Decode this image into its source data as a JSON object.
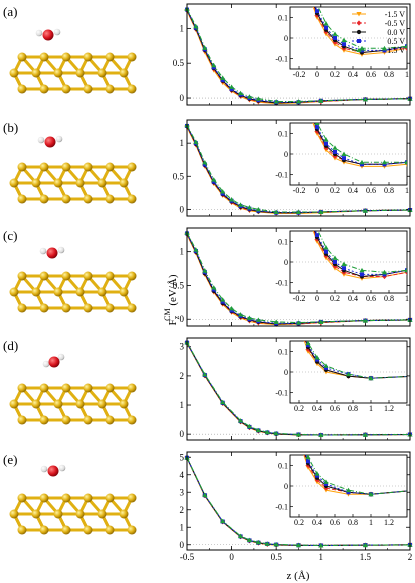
{
  "ylabel_main": "F",
  "ylabel_sup": "CM",
  "ylabel_sub": "z",
  "ylabel_unit": " (eV/Å)",
  "xlabel": "z (Å)",
  "colors": {
    "-1.5 V": "#ffa20a",
    "-0.5 V": "#e8262a",
    "0.0 V": "#111111",
    "0.5 V": "#1c27d8",
    "1.5 V": "#1f9e3a",
    "gold": "#e0b012",
    "oxygen": "#d8131d",
    "hydrogen": "#e8e8e8"
  },
  "chart_data": [
    {
      "type": "line",
      "panel": "(a)",
      "xlim": [
        -0.5,
        2
      ],
      "ylim": [
        -0.1,
        1.35
      ],
      "xticks": [
        "-0.5",
        "0",
        "0.5",
        "1",
        "1.5",
        "2"
      ],
      "yticks": [
        "0",
        "0.5",
        "1"
      ],
      "series": [
        {
          "name": "-1.5 V",
          "x": [
            -0.5,
            -0.4,
            -0.3,
            -0.2,
            -0.1,
            0,
            0.1,
            0.2,
            0.3,
            0.5,
            0.75,
            1,
            1.5,
            2
          ],
          "y": [
            1.25,
            0.98,
            0.66,
            0.4,
            0.22,
            0.1,
            0.02,
            -0.03,
            -0.06,
            -0.08,
            -0.07,
            -0.05,
            -0.02,
            -0.01
          ]
        },
        {
          "name": "-0.5 V",
          "x": [
            -0.5,
            -0.4,
            -0.3,
            -0.2,
            -0.1,
            0,
            0.1,
            0.2,
            0.3,
            0.5,
            0.75,
            1,
            1.5,
            2
          ],
          "y": [
            1.26,
            0.99,
            0.68,
            0.42,
            0.24,
            0.11,
            0.03,
            -0.02,
            -0.05,
            -0.07,
            -0.06,
            -0.05,
            -0.02,
            -0.01
          ]
        },
        {
          "name": "0.0 V",
          "x": [
            -0.5,
            -0.4,
            -0.3,
            -0.2,
            -0.1,
            0,
            0.1,
            0.2,
            0.3,
            0.5,
            0.75,
            1,
            1.5,
            2
          ],
          "y": [
            1.27,
            1.0,
            0.69,
            0.43,
            0.25,
            0.12,
            0.04,
            -0.01,
            -0.04,
            -0.07,
            -0.06,
            -0.04,
            -0.02,
            -0.01
          ]
        },
        {
          "name": "0.5 V",
          "x": [
            -0.5,
            -0.4,
            -0.3,
            -0.2,
            -0.1,
            0,
            0.1,
            0.2,
            0.3,
            0.5,
            0.75,
            1,
            1.5,
            2
          ],
          "y": [
            1.27,
            1.01,
            0.7,
            0.44,
            0.26,
            0.13,
            0.05,
            0.0,
            -0.03,
            -0.06,
            -0.06,
            -0.04,
            -0.02,
            -0.01
          ]
        },
        {
          "name": "1.5 V",
          "x": [
            -0.5,
            -0.4,
            -0.3,
            -0.2,
            -0.1,
            0,
            0.1,
            0.2,
            0.3,
            0.5,
            0.75,
            1,
            1.5,
            2
          ],
          "y": [
            1.28,
            1.03,
            0.72,
            0.47,
            0.29,
            0.16,
            0.07,
            0.02,
            -0.01,
            -0.05,
            -0.05,
            -0.04,
            -0.02,
            -0.01
          ]
        }
      ],
      "inset": {
        "xlim": [
          -0.3,
          1
        ],
        "ylim": [
          -0.15,
          0.15
        ],
        "xticks": [
          "-0.2",
          "0",
          "0.2",
          "0.4",
          "0.6",
          "0.8",
          "1"
        ],
        "yticks": [
          "-0.1",
          "0",
          "0.1"
        ]
      }
    },
    {
      "type": "line",
      "panel": "(b)",
      "xlim": [
        -0.5,
        2
      ],
      "ylim": [
        -0.1,
        1.35
      ],
      "xticks": [
        "-0.5",
        "0",
        "0.5",
        "1",
        "1.5",
        "2"
      ],
      "yticks": [
        "0",
        "0.5",
        "1"
      ],
      "series": [
        {
          "name": "-1.5 V",
          "x": [
            -0.5,
            -0.4,
            -0.3,
            -0.2,
            -0.1,
            0,
            0.1,
            0.2,
            0.3,
            0.5,
            0.75,
            1,
            1.5,
            2
          ],
          "y": [
            1.24,
            0.97,
            0.65,
            0.39,
            0.21,
            0.1,
            0.02,
            -0.02,
            -0.04,
            -0.06,
            -0.06,
            -0.05,
            -0.02,
            -0.01
          ]
        },
        {
          "name": "-0.5 V",
          "x": [
            -0.5,
            -0.4,
            -0.3,
            -0.2,
            -0.1,
            0,
            0.1,
            0.2,
            0.3,
            0.5,
            0.75,
            1,
            1.5,
            2
          ],
          "y": [
            1.25,
            0.98,
            0.66,
            0.4,
            0.22,
            0.11,
            0.03,
            -0.01,
            -0.03,
            -0.05,
            -0.05,
            -0.04,
            -0.02,
            -0.01
          ]
        },
        {
          "name": "0.0 V",
          "x": [
            -0.5,
            -0.4,
            -0.3,
            -0.2,
            -0.1,
            0,
            0.1,
            0.2,
            0.3,
            0.5,
            0.75,
            1,
            1.5,
            2
          ],
          "y": [
            1.26,
            0.99,
            0.67,
            0.41,
            0.23,
            0.12,
            0.04,
            0.0,
            -0.03,
            -0.05,
            -0.05,
            -0.04,
            -0.02,
            -0.01
          ]
        },
        {
          "name": "0.5 V",
          "x": [
            -0.5,
            -0.4,
            -0.3,
            -0.2,
            -0.1,
            0,
            0.1,
            0.2,
            0.3,
            0.5,
            0.75,
            1,
            1.5,
            2
          ],
          "y": [
            1.26,
            1.0,
            0.68,
            0.42,
            0.24,
            0.13,
            0.05,
            0.01,
            -0.02,
            -0.05,
            -0.05,
            -0.04,
            -0.02,
            -0.01
          ]
        },
        {
          "name": "1.5 V",
          "x": [
            -0.5,
            -0.4,
            -0.3,
            -0.2,
            -0.1,
            0,
            0.1,
            0.2,
            0.3,
            0.5,
            0.75,
            1,
            1.5,
            2
          ],
          "y": [
            1.27,
            1.02,
            0.71,
            0.45,
            0.27,
            0.15,
            0.07,
            0.03,
            0.0,
            -0.04,
            -0.04,
            -0.04,
            -0.02,
            -0.01
          ]
        }
      ],
      "inset": {
        "xlim": [
          -0.3,
          1
        ],
        "ylim": [
          -0.15,
          0.15
        ],
        "xticks": [
          "-0.2",
          "0",
          "0.2",
          "0.4",
          "0.6",
          "0.8",
          "1"
        ],
        "yticks": [
          "-0.1",
          "0",
          "0.1"
        ]
      }
    },
    {
      "type": "line",
      "panel": "(c)",
      "xlim": [
        -0.5,
        2
      ],
      "ylim": [
        -0.1,
        1.35
      ],
      "xticks": [
        "-0.5",
        "0",
        "0.5",
        "1",
        "1.5",
        "2"
      ],
      "yticks": [
        "0",
        "0.5",
        "1"
      ],
      "series": [
        {
          "name": "-1.5 V",
          "x": [
            -0.5,
            -0.4,
            -0.3,
            -0.2,
            -0.1,
            0,
            0.1,
            0.2,
            0.3,
            0.5,
            0.75,
            1,
            1.5,
            2
          ],
          "y": [
            1.25,
            0.98,
            0.66,
            0.4,
            0.22,
            0.1,
            0.02,
            -0.03,
            -0.06,
            -0.08,
            -0.07,
            -0.05,
            -0.02,
            -0.01
          ]
        },
        {
          "name": "-0.5 V",
          "x": [
            -0.5,
            -0.4,
            -0.3,
            -0.2,
            -0.1,
            0,
            0.1,
            0.2,
            0.3,
            0.5,
            0.75,
            1,
            1.5,
            2
          ],
          "y": [
            1.26,
            0.99,
            0.67,
            0.41,
            0.23,
            0.11,
            0.03,
            -0.02,
            -0.05,
            -0.07,
            -0.07,
            -0.05,
            -0.02,
            -0.01
          ]
        },
        {
          "name": "0.0 V",
          "x": [
            -0.5,
            -0.4,
            -0.3,
            -0.2,
            -0.1,
            0,
            0.1,
            0.2,
            0.3,
            0.5,
            0.75,
            1,
            1.5,
            2
          ],
          "y": [
            1.27,
            1.0,
            0.68,
            0.42,
            0.24,
            0.12,
            0.04,
            -0.01,
            -0.04,
            -0.07,
            -0.06,
            -0.04,
            -0.02,
            -0.01
          ]
        },
        {
          "name": "0.5 V",
          "x": [
            -0.5,
            -0.4,
            -0.3,
            -0.2,
            -0.1,
            0,
            0.1,
            0.2,
            0.3,
            0.5,
            0.75,
            1,
            1.5,
            2
          ],
          "y": [
            1.27,
            1.01,
            0.7,
            0.44,
            0.26,
            0.13,
            0.05,
            0.0,
            -0.03,
            -0.06,
            -0.06,
            -0.04,
            -0.02,
            -0.01
          ]
        },
        {
          "name": "1.5 V",
          "x": [
            -0.5,
            -0.4,
            -0.3,
            -0.2,
            -0.1,
            0,
            0.1,
            0.2,
            0.3,
            0.5,
            0.75,
            1,
            1.5,
            2
          ],
          "y": [
            1.28,
            1.03,
            0.72,
            0.47,
            0.29,
            0.16,
            0.07,
            0.02,
            -0.01,
            -0.04,
            -0.05,
            -0.04,
            -0.02,
            -0.01
          ]
        }
      ],
      "inset": {
        "xlim": [
          -0.3,
          1
        ],
        "ylim": [
          -0.15,
          0.15
        ],
        "xticks": [
          "-0.2",
          "0",
          "0.2",
          "0.4",
          "0.6",
          "0.8",
          "1"
        ],
        "yticks": [
          "-0.1",
          "0",
          "0.1"
        ]
      }
    },
    {
      "type": "line",
      "panel": "(d)",
      "xlim": [
        -0.5,
        2
      ],
      "ylim": [
        -0.2,
        3.3
      ],
      "xticks": [
        "-0.5",
        "0",
        "0.5",
        "1",
        "1.5",
        "2"
      ],
      "yticks": [
        "0",
        "1",
        "2",
        "3"
      ],
      "series": [
        {
          "name": "-1.5 V",
          "x": [
            -0.5,
            -0.3,
            -0.1,
            0.1,
            0.2,
            0.3,
            0.4,
            0.5,
            0.75,
            1,
            1.5,
            2
          ],
          "y": [
            3.12,
            2.0,
            1.05,
            0.42,
            0.22,
            0.1,
            0.04,
            0.0,
            -0.02,
            -0.03,
            -0.02,
            -0.01
          ]
        },
        {
          "name": "-0.5 V",
          "x": [
            -0.5,
            -0.3,
            -0.1,
            0.1,
            0.2,
            0.3,
            0.4,
            0.5,
            0.75,
            1,
            1.5,
            2
          ],
          "y": [
            3.13,
            2.01,
            1.06,
            0.43,
            0.23,
            0.11,
            0.05,
            0.01,
            -0.02,
            -0.03,
            -0.02,
            -0.01
          ]
        },
        {
          "name": "0.0 V",
          "x": [
            -0.5,
            -0.3,
            -0.1,
            0.1,
            0.2,
            0.3,
            0.4,
            0.5,
            0.75,
            1,
            1.5,
            2
          ],
          "y": [
            3.14,
            2.02,
            1.07,
            0.44,
            0.24,
            0.12,
            0.05,
            0.01,
            -0.02,
            -0.03,
            -0.02,
            -0.01
          ]
        },
        {
          "name": "0.5 V",
          "x": [
            -0.5,
            -0.3,
            -0.1,
            0.1,
            0.2,
            0.3,
            0.4,
            0.5,
            0.75,
            1,
            1.5,
            2
          ],
          "y": [
            3.14,
            2.03,
            1.08,
            0.45,
            0.25,
            0.13,
            0.06,
            0.02,
            -0.01,
            -0.03,
            -0.02,
            -0.01
          ]
        },
        {
          "name": "1.5 V",
          "x": [
            -0.5,
            -0.3,
            -0.1,
            0.1,
            0.2,
            0.3,
            0.4,
            0.5,
            0.75,
            1,
            1.5,
            2
          ],
          "y": [
            3.15,
            2.05,
            1.1,
            0.47,
            0.27,
            0.14,
            0.07,
            0.03,
            -0.01,
            -0.03,
            -0.02,
            -0.01
          ]
        }
      ],
      "inset": {
        "xlim": [
          0.1,
          1.4
        ],
        "ylim": [
          -0.15,
          0.15
        ],
        "xticks": [
          "0.2",
          "0.4",
          "0.6",
          "0.8",
          "1",
          "1.2"
        ],
        "yticks": [
          "-0.1",
          "0",
          "0.1"
        ]
      }
    },
    {
      "type": "line",
      "panel": "(e)",
      "xlim": [
        -0.5,
        2
      ],
      "ylim": [
        -0.3,
        5.3
      ],
      "xticks": [
        "-0.5",
        "0",
        "0.5",
        "1",
        "1.5",
        "2"
      ],
      "yticks": [
        "0",
        "1",
        "2",
        "3",
        "4",
        "5"
      ],
      "series": [
        {
          "name": "-1.5 V",
          "x": [
            -0.5,
            -0.3,
            -0.1,
            0.1,
            0.2,
            0.3,
            0.4,
            0.5,
            0.75,
            1,
            1.5,
            2
          ],
          "y": [
            4.95,
            2.8,
            1.3,
            0.45,
            0.22,
            0.09,
            0.02,
            -0.02,
            -0.04,
            -0.04,
            -0.02,
            -0.01
          ]
        },
        {
          "name": "-0.5 V",
          "x": [
            -0.5,
            -0.3,
            -0.1,
            0.1,
            0.2,
            0.3,
            0.4,
            0.5,
            0.75,
            1,
            1.5,
            2
          ],
          "y": [
            4.96,
            2.81,
            1.31,
            0.46,
            0.23,
            0.1,
            0.03,
            -0.01,
            -0.03,
            -0.04,
            -0.02,
            -0.01
          ]
        },
        {
          "name": "0.0 V",
          "x": [
            -0.5,
            -0.3,
            -0.1,
            0.1,
            0.2,
            0.3,
            0.4,
            0.5,
            0.75,
            1,
            1.5,
            2
          ],
          "y": [
            4.97,
            2.82,
            1.32,
            0.47,
            0.24,
            0.11,
            0.04,
            0.0,
            -0.03,
            -0.04,
            -0.02,
            -0.01
          ]
        },
        {
          "name": "0.5 V",
          "x": [
            -0.5,
            -0.3,
            -0.1,
            0.1,
            0.2,
            0.3,
            0.4,
            0.5,
            0.75,
            1,
            1.5,
            2
          ],
          "y": [
            4.97,
            2.83,
            1.33,
            0.48,
            0.25,
            0.12,
            0.05,
            0.01,
            -0.03,
            -0.04,
            -0.02,
            -0.01
          ]
        },
        {
          "name": "1.5 V",
          "x": [
            -0.5,
            -0.3,
            -0.1,
            0.1,
            0.2,
            0.3,
            0.4,
            0.5,
            0.75,
            1,
            1.5,
            2
          ],
          "y": [
            4.98,
            2.85,
            1.35,
            0.5,
            0.27,
            0.14,
            0.06,
            0.02,
            -0.02,
            -0.04,
            -0.02,
            -0.01
          ]
        }
      ],
      "inset": {
        "xlim": [
          0.1,
          1.4
        ],
        "ylim": [
          -0.15,
          0.15
        ],
        "xticks": [
          "0.2",
          "0.4",
          "0.6",
          "0.8",
          "1",
          "1.2"
        ],
        "yticks": [
          "-0.1",
          "0",
          "0.1"
        ]
      }
    }
  ]
}
